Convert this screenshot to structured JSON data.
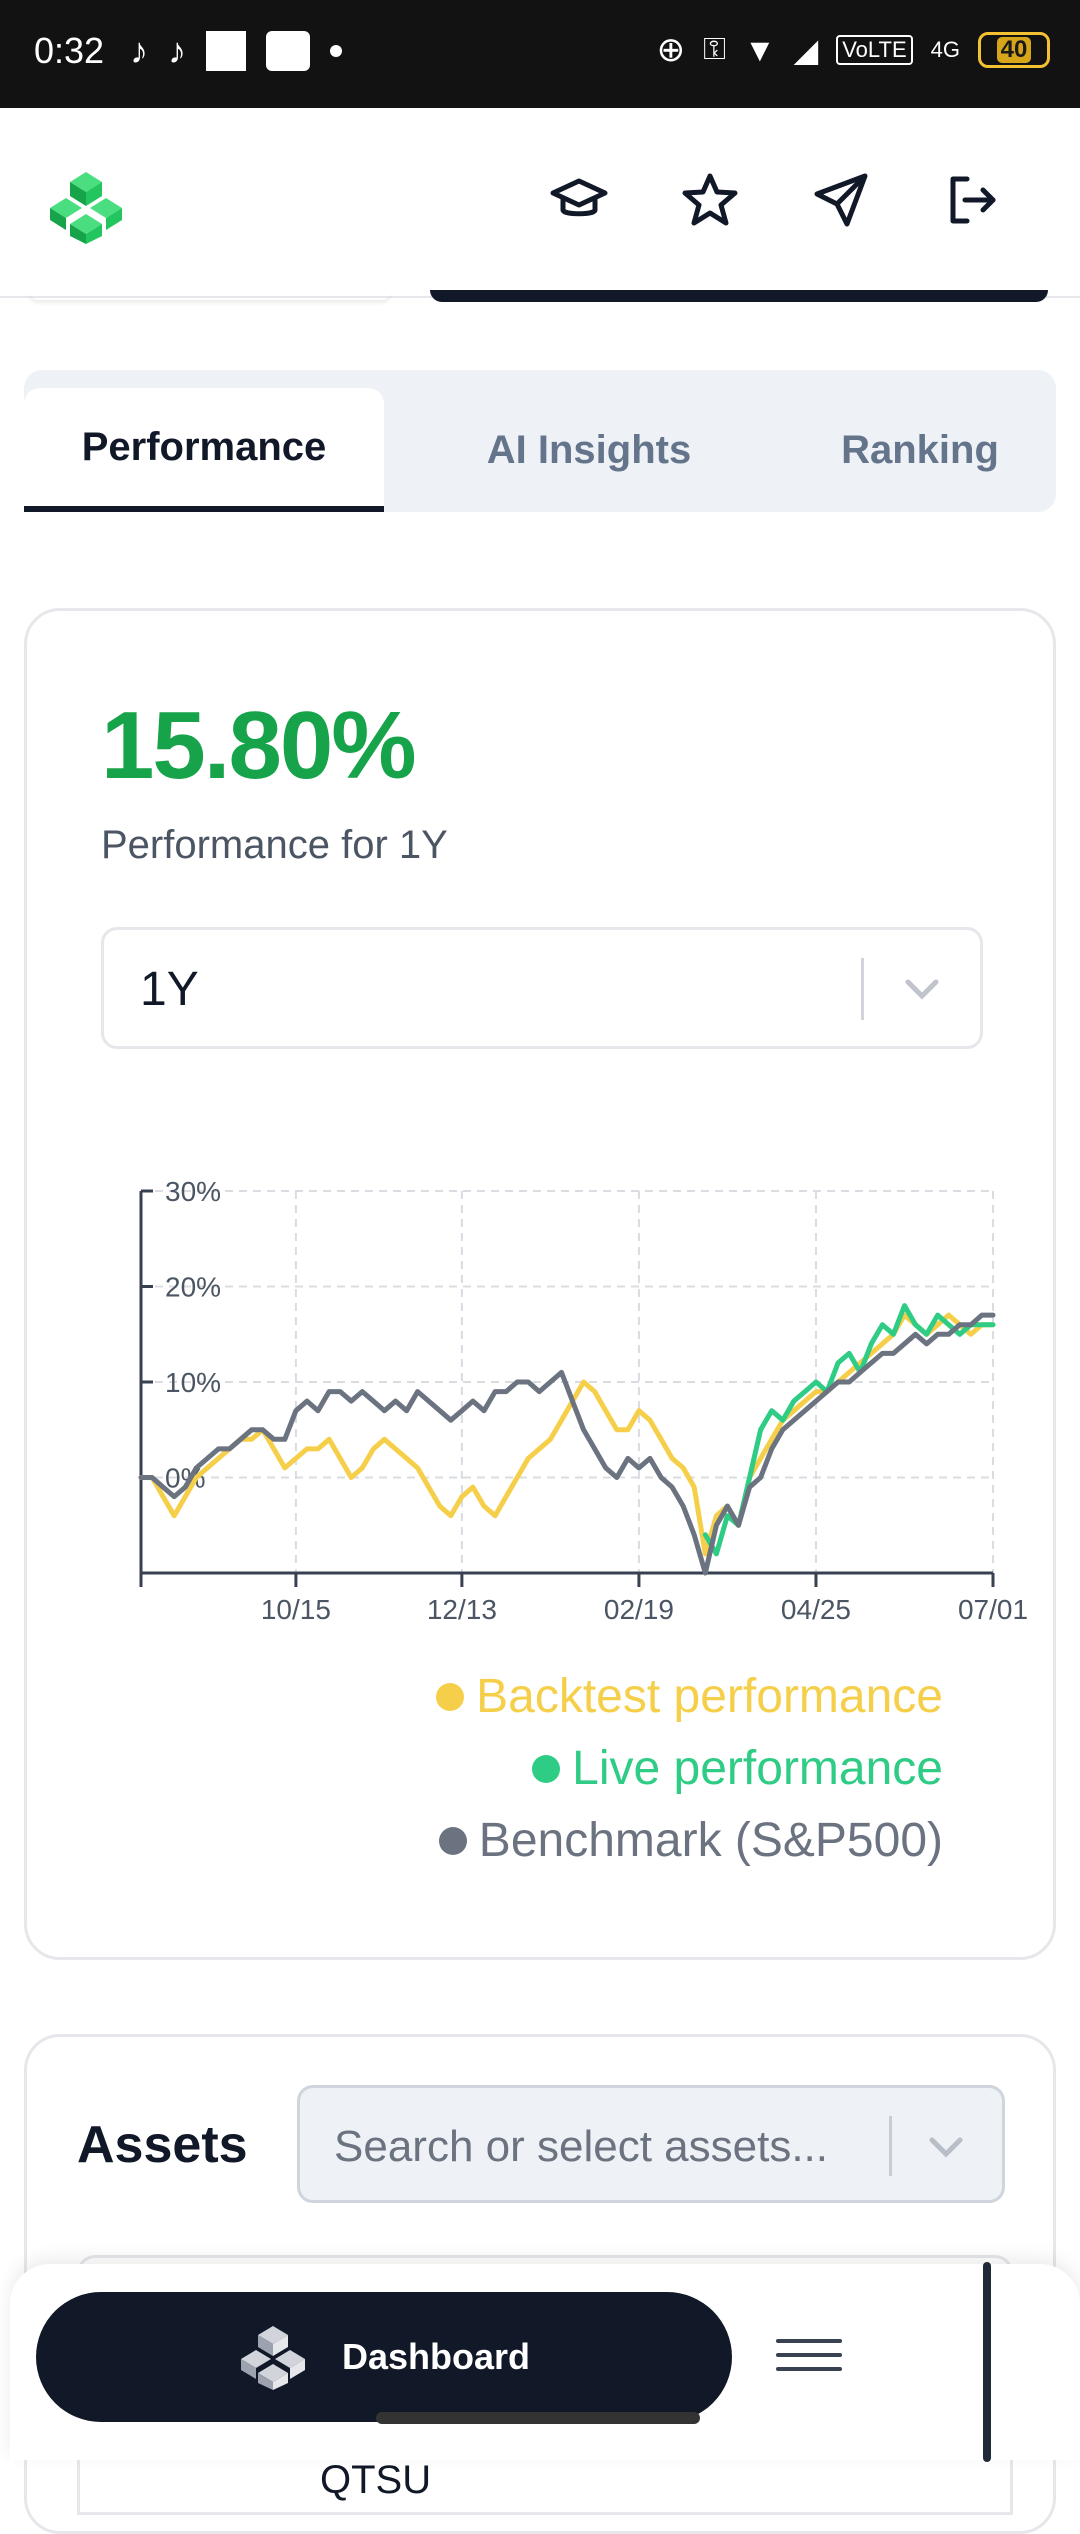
{
  "status_bar": {
    "time": "0:32",
    "battery": "40",
    "network": "VoLTE",
    "signal": "4G"
  },
  "header": {
    "logo": "green-cube-logo",
    "icons": [
      "graduation-cap-icon",
      "star-icon",
      "send-icon",
      "logout-icon"
    ]
  },
  "tabs": [
    {
      "label": "Performance",
      "active": true
    },
    {
      "label": "AI Insights",
      "active": false
    },
    {
      "label": "Ranking",
      "active": false
    }
  ],
  "performance": {
    "value": "15.80%",
    "label": "Performance for 1Y",
    "period_select": "1Y"
  },
  "chart_data": {
    "type": "line",
    "y_ticks": [
      "30%",
      "20%",
      "10%",
      "0%"
    ],
    "x_ticks": [
      "10/15",
      "12/13",
      "02/19",
      "04/25",
      "07/01"
    ],
    "ylim": [
      -10,
      30
    ],
    "grid": true,
    "legend_position": "bottom-right",
    "series": [
      {
        "name": "Backtest performance",
        "color": "#f6cf4a",
        "values": [
          0,
          0,
          -2,
          -4,
          -2,
          0,
          1,
          2,
          3,
          4,
          4,
          5,
          3,
          1,
          2,
          3,
          3,
          4,
          2,
          0,
          1,
          3,
          4,
          3,
          2,
          1,
          -1,
          -3,
          -4,
          -2,
          -1,
          -3,
          -4,
          -2,
          0,
          2,
          3,
          4,
          6,
          8,
          10,
          9,
          7,
          5,
          5,
          7,
          6,
          4,
          2,
          1,
          -1,
          -8,
          -4,
          -3,
          -5,
          0,
          2,
          4,
          6,
          7,
          8,
          9,
          9,
          10,
          11,
          12,
          13,
          14,
          15,
          17,
          16,
          15,
          16,
          17,
          16,
          15,
          16,
          16
        ]
      },
      {
        "name": "Live performance",
        "color": "#2ecc85",
        "values": [
          null,
          null,
          null,
          null,
          null,
          null,
          null,
          null,
          null,
          null,
          null,
          null,
          null,
          null,
          null,
          null,
          null,
          null,
          null,
          null,
          null,
          null,
          null,
          null,
          null,
          null,
          null,
          null,
          null,
          null,
          null,
          null,
          null,
          null,
          null,
          null,
          null,
          null,
          null,
          null,
          null,
          null,
          null,
          null,
          null,
          null,
          null,
          null,
          null,
          null,
          null,
          -6,
          -8,
          -4,
          -5,
          0,
          5,
          7,
          6,
          8,
          9,
          10,
          9,
          12,
          13,
          11,
          14,
          16,
          15,
          18,
          16,
          15,
          17,
          16,
          15,
          16,
          16,
          16
        ]
      },
      {
        "name": "Benchmark (S&P500)",
        "color": "#6b7280",
        "values": [
          0,
          0,
          -1,
          -2,
          -1,
          1,
          2,
          3,
          3,
          4,
          5,
          5,
          4,
          4,
          7,
          8,
          7,
          9,
          9,
          8,
          9,
          8,
          7,
          8,
          7,
          9,
          8,
          7,
          6,
          7,
          8,
          7,
          9,
          9,
          10,
          10,
          9,
          10,
          11,
          8,
          5,
          3,
          1,
          0,
          2,
          1,
          2,
          0,
          -1,
          -3,
          -6,
          -10,
          -5,
          -3,
          -5,
          -1,
          0,
          3,
          5,
          6,
          7,
          8,
          9,
          10,
          10,
          11,
          12,
          13,
          13,
          14,
          15,
          14,
          15,
          15,
          16,
          16,
          17,
          17
        ]
      }
    ]
  },
  "legend": [
    {
      "label": "Backtest performance",
      "color": "#f6cf4a"
    },
    {
      "label": "Live performance",
      "color": "#2ecc85"
    },
    {
      "label": "Benchmark (S&P500)",
      "color": "#6b7280"
    }
  ],
  "assets": {
    "title": "Assets",
    "placeholder": "Search or select assets...",
    "peek_row": "QTSU"
  },
  "bottom_nav": {
    "dashboard_label": "Dashboard"
  }
}
